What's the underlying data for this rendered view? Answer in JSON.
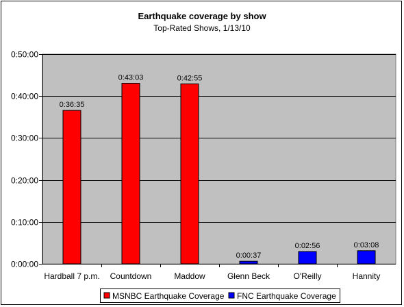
{
  "chart_data": {
    "type": "bar",
    "title": "Earthquake coverage by show",
    "subtitle": "Top-Rated Shows, 1/13/10",
    "xlabel": "",
    "ylabel": "",
    "categories": [
      "Hardball 7 p.m.",
      "Countdown",
      "Maddow",
      "Glenn Beck",
      "O'Reilly",
      "Hannity"
    ],
    "values_seconds": [
      2195,
      2583,
      2575,
      37,
      176,
      188
    ],
    "data_labels": [
      "0:36:35",
      "0:43:03",
      "0:42:55",
      "0:00:37",
      "0:02:56",
      "0:03:08"
    ],
    "network": [
      "MSNBC",
      "MSNBC",
      "MSNBC",
      "FNC",
      "FNC",
      "FNC"
    ],
    "series": [
      {
        "name": "MSNBC Earthquake Coverage",
        "color": "#ff0000",
        "categories": [
          "Hardball 7 p.m.",
          "Countdown",
          "Maddow"
        ]
      },
      {
        "name": "FNC Earthquake Coverage",
        "color": "#0000ff",
        "categories": [
          "Glenn Beck",
          "O'Reilly",
          "Hannity"
        ]
      }
    ],
    "ylim_seconds": [
      0,
      3000
    ],
    "yticks_seconds": [
      0,
      600,
      1200,
      1800,
      2400,
      3000
    ],
    "ytick_labels": [
      "0:00:00",
      "0:10:00",
      "0:20:00",
      "0:30:00",
      "0:40:00",
      "0:50:00"
    ],
    "grid": true,
    "plot_background": "#c0c0c0",
    "legend_position": "bottom"
  }
}
